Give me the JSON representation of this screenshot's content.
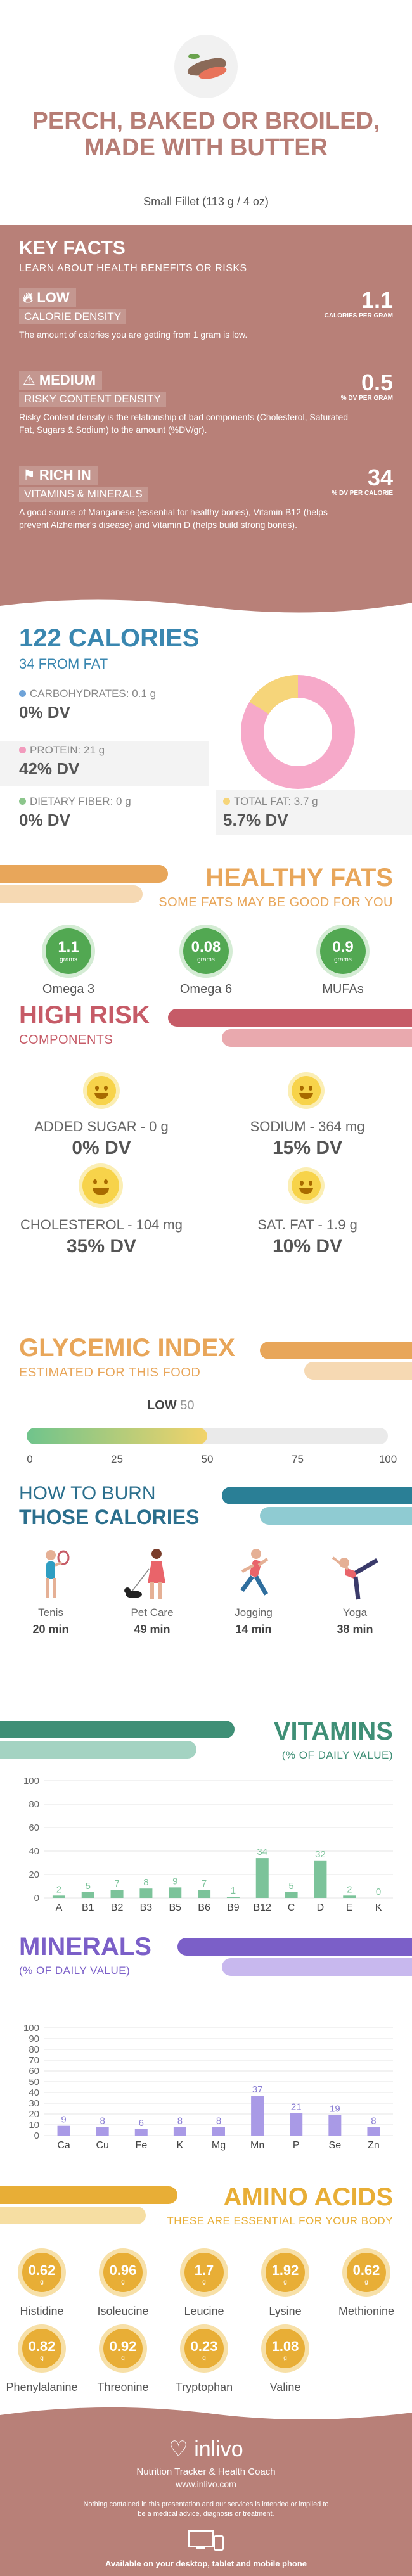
{
  "header": {
    "title": "PERCH, BAKED OR BROILED, MADE WITH BUTTER",
    "serving": "Small Fillet (113 g / 4 oz)"
  },
  "key_facts": {
    "heading": "KEY FACTS",
    "subheading": "LEARN ABOUT HEALTH BENEFITS OR RISKS",
    "items": [
      {
        "level": "LOW",
        "label": "CALORIE DENSITY",
        "value": "1.1",
        "unit": "CALORIES PER GRAM",
        "desc": "The amount of calories you are getting from 1 gram is low."
      },
      {
        "level": "MEDIUM",
        "label": "RISKY CONTENT DENSITY",
        "value": "0.5",
        "unit": "% DV PER GRAM",
        "desc": "Risky Content density is the relationship of bad components (Cholesterol, Saturated Fat, Sugars & Sodium) to the amount (%DV/gr)."
      },
      {
        "level": "RICH IN",
        "label": "VITAMINS & MINERALS",
        "value": "34",
        "unit": "% DV PER CALORIE",
        "desc": "A good source of Manganese (essential for healthy bones), Vitamin B12 (helps prevent Alzheimer's disease) and Vitamin D (helps build strong bones)."
      }
    ]
  },
  "calories": {
    "heading": "122 CALORIES",
    "sub": "34 FROM FAT",
    "items": [
      {
        "label": "CARBOHYDRATES: 0.1 g",
        "dv": "0% DV",
        "color": "#6fa3d8"
      },
      {
        "label": "PROTEIN: 21 g",
        "dv": "42% DV",
        "color": "#f29bbd"
      },
      {
        "label": "DIETARY FIBER: 0 g",
        "dv": "0% DV",
        "color": "#8cc68c"
      },
      {
        "label": "TOTAL FAT: 3.7 g",
        "dv": "5.7% DV",
        "color": "#f6d57a"
      }
    ]
  },
  "healthy_fats": {
    "heading": "HEALTHY FATS",
    "sub": "SOME FATS MAY BE GOOD FOR YOU",
    "unit": "grams",
    "items": [
      {
        "value": "1.1",
        "name": "Omega 3"
      },
      {
        "value": "0.08",
        "name": "Omega 6"
      },
      {
        "value": "0.9",
        "name": "MUFAs"
      }
    ]
  },
  "high_risk": {
    "heading": "HIGH RISK",
    "sub": "COMPONENTS",
    "items": [
      {
        "label": "ADDED SUGAR - 0 g",
        "dv": "0% DV"
      },
      {
        "label": "SODIUM - 364 mg",
        "dv": "15% DV"
      },
      {
        "label": "CHOLESTEROL - 104 mg",
        "dv": "35% DV"
      },
      {
        "label": "SAT. FAT - 1.9 g",
        "dv": "10% DV"
      }
    ]
  },
  "glycemic": {
    "heading": "GLYCEMIC INDEX",
    "sub": "ESTIMATED FOR THIS FOOD",
    "level": "LOW",
    "value": 50,
    "value_text": "50",
    "ticks": [
      "0",
      "25",
      "50",
      "75",
      "100"
    ]
  },
  "burn": {
    "heading1": "HOW TO BURN",
    "heading2": "THOSE CALORIES",
    "items": [
      {
        "name": "Tenis",
        "min": "20 min"
      },
      {
        "name": "Pet Care",
        "min": "49 min"
      },
      {
        "name": "Jogging",
        "min": "14 min"
      },
      {
        "name": "Yoga",
        "min": "38 min"
      }
    ]
  },
  "vitamins": {
    "heading": "VITAMINS",
    "sub": "(% OF DAILY VALUE)",
    "chart_data": {
      "type": "bar",
      "categories": [
        "A",
        "B1",
        "B2",
        "B3",
        "B5",
        "B6",
        "B9",
        "B12",
        "C",
        "D",
        "E",
        "K"
      ],
      "values": [
        2,
        5,
        7,
        8,
        9,
        7,
        1,
        34,
        5,
        32,
        2,
        0
      ],
      "ylim": [
        0,
        100
      ],
      "yticks": [
        0,
        20,
        40,
        60,
        80,
        100
      ]
    }
  },
  "minerals": {
    "heading": "MINERALS",
    "sub": "(% OF DAILY VALUE)",
    "chart_data": {
      "type": "bar",
      "categories": [
        "Ca",
        "Cu",
        "Fe",
        "K",
        "Mg",
        "Mn",
        "P",
        "Se",
        "Zn"
      ],
      "values": [
        9,
        8,
        6,
        8,
        8,
        37,
        21,
        19,
        8
      ],
      "ylim": [
        0,
        100
      ],
      "yticks": [
        0,
        10,
        20,
        30,
        40,
        50,
        60,
        70,
        80,
        90,
        100
      ]
    }
  },
  "amino": {
    "heading": "AMINO ACIDS",
    "sub": "THESE ARE ESSENTIAL FOR YOUR BODY",
    "unit": "g",
    "items": [
      {
        "value": "0.62",
        "name": "Histidine"
      },
      {
        "value": "0.96",
        "name": "Isoleucine"
      },
      {
        "value": "1.7",
        "name": "Leucine"
      },
      {
        "value": "1.92",
        "name": "Lysine"
      },
      {
        "value": "0.62",
        "name": "Methionine"
      },
      {
        "value": "0.82",
        "name": "Phenylalanine"
      },
      {
        "value": "0.92",
        "name": "Threonine"
      },
      {
        "value": "0.23",
        "name": "Tryptophan"
      },
      {
        "value": "1.08",
        "name": "Valine"
      }
    ]
  },
  "footer": {
    "brand": "inlivo",
    "tagline": "Nutrition Tracker & Health Coach",
    "url": "www.inlivo.com",
    "disclaimer": "Nothing contained in this presentation and our services is intended or implied to be a medical advice, diagnosis or treatment.",
    "available": "Available on your desktop, tablet and mobile phone"
  }
}
